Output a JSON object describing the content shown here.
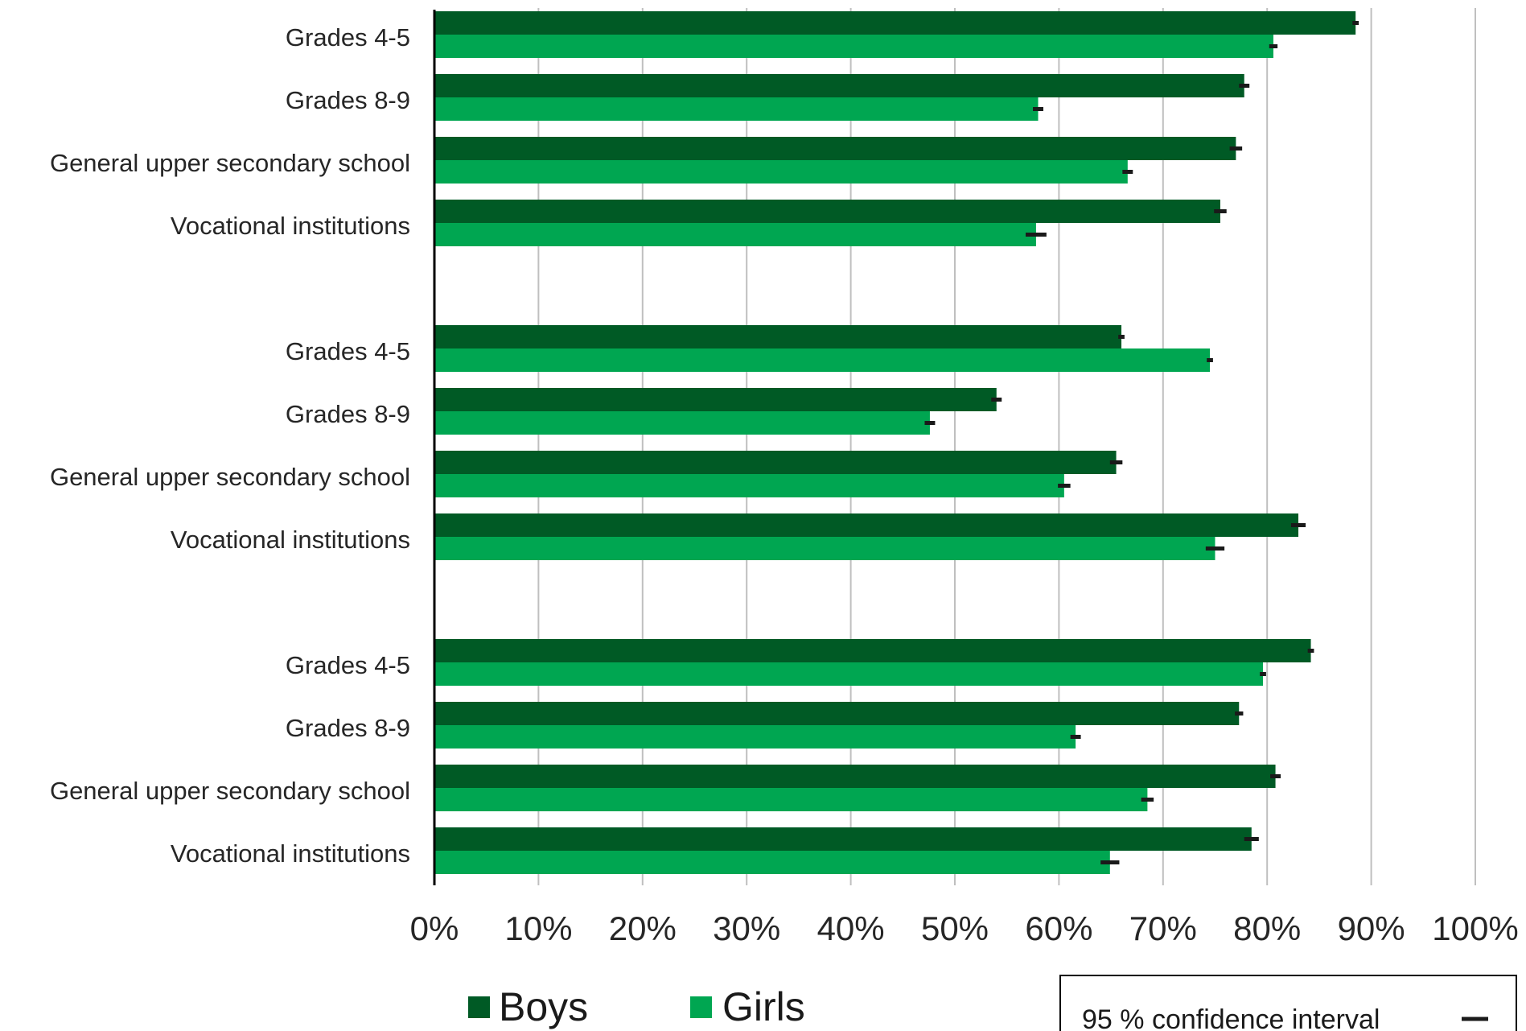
{
  "chart_data": {
    "type": "bar",
    "orientation": "horizontal",
    "categories": [
      "Grades 4-5",
      "Grades 8-9",
      "General upper secondary school",
      "Vocational institutions",
      "Grades 4-5",
      "Grades 8-9",
      "General upper secondary school",
      "Vocational institutions",
      "Grades 4-5",
      "Grades 8-9",
      "General upper secondary school",
      "Vocational institutions"
    ],
    "groups": [
      [
        0,
        1,
        2,
        3
      ],
      [
        4,
        5,
        6,
        7
      ],
      [
        8,
        9,
        10,
        11
      ]
    ],
    "series": [
      {
        "name": "Boys",
        "color": "#005a25",
        "values": [
          88.5,
          77.8,
          77.0,
          75.5,
          66.0,
          54.0,
          65.5,
          83.0,
          84.2,
          77.3,
          80.8,
          78.5
        ],
        "ci": [
          0.3,
          0.5,
          0.6,
          0.6,
          0.3,
          0.5,
          0.6,
          0.7,
          0.3,
          0.4,
          0.5,
          0.7
        ]
      },
      {
        "name": "Girls",
        "color": "#00a651",
        "values": [
          80.6,
          58.0,
          66.6,
          57.8,
          74.5,
          47.6,
          60.5,
          75.0,
          79.6,
          61.6,
          68.5,
          64.9
        ],
        "ci": [
          0.4,
          0.5,
          0.5,
          1.0,
          0.3,
          0.5,
          0.6,
          0.9,
          0.3,
          0.5,
          0.6,
          0.9
        ]
      }
    ],
    "xlim": [
      0,
      100
    ],
    "x_ticks": [
      "0%",
      "10%",
      "20%",
      "30%",
      "40%",
      "50%",
      "60%",
      "70%",
      "80%",
      "90%",
      "100%"
    ],
    "grid": "vertical",
    "legend": {
      "position": "bottom-left",
      "items": [
        "Boys",
        "Girls"
      ]
    },
    "ci_legend_label": "95 % confidence interval",
    "ci_color": "#1a1a1a"
  }
}
